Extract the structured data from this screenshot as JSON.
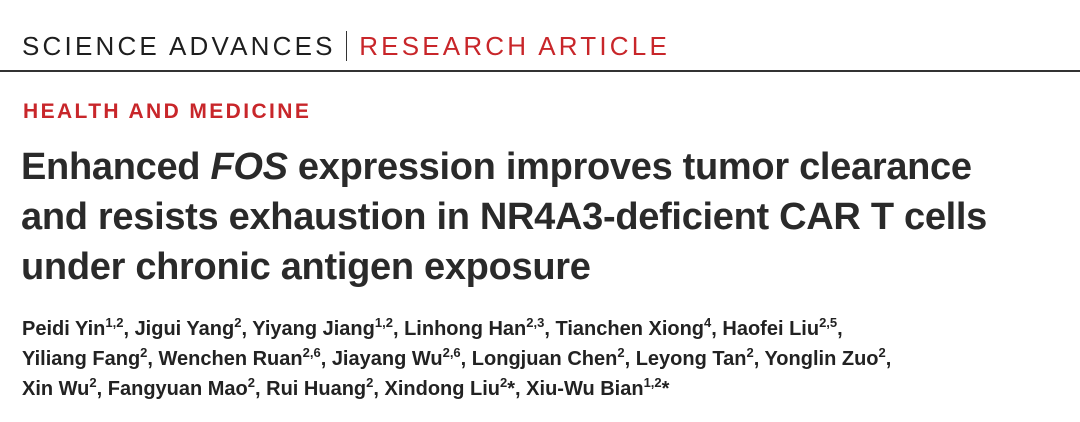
{
  "header": {
    "journal": "SCIENCE ADVANCES",
    "article_type": "RESEARCH ARTICLE"
  },
  "section": "HEALTH AND MEDICINE",
  "title": {
    "line1_a": "Enhanced ",
    "line1_italic": "FOS",
    "line1_b": " expression improves tumor clearance",
    "line2": "and resists exhaustion in NR4A3-deficient CAR T cells",
    "line3": "under chronic antigen exposure"
  },
  "authors": [
    [
      {
        "name": "Peidi Yin",
        "aff": "1,2",
        "sep": ", "
      },
      {
        "name": "Jigui Yang",
        "aff": "2",
        "sep": ", "
      },
      {
        "name": "Yiyang Jiang",
        "aff": "1,2",
        "sep": ", "
      },
      {
        "name": "Linhong Han",
        "aff": "2,3",
        "sep": ", "
      },
      {
        "name": "Tianchen Xiong",
        "aff": "4",
        "sep": ", "
      },
      {
        "name": "Haofei Liu",
        "aff": "2,5",
        "sep": ","
      }
    ],
    [
      {
        "name": "Yiliang Fang",
        "aff": "2",
        "sep": ", "
      },
      {
        "name": "Wenchen Ruan",
        "aff": "2,6",
        "sep": ", "
      },
      {
        "name": "Jiayang Wu",
        "aff": "2,6",
        "sep": ", "
      },
      {
        "name": "Longjuan Chen",
        "aff": "2",
        "sep": ", "
      },
      {
        "name": "Leyong Tan",
        "aff": "2",
        "sep": ", "
      },
      {
        "name": "Yonglin Zuo",
        "aff": "2",
        "sep": ","
      }
    ],
    [
      {
        "name": "Xin Wu",
        "aff": "2",
        "sep": ", "
      },
      {
        "name": "Fangyuan Mao",
        "aff": "2",
        "sep": ", "
      },
      {
        "name": "Rui Huang",
        "aff": "2",
        "sep": ", "
      },
      {
        "name": "Xindong Liu",
        "aff": "2",
        "sep": "*, "
      },
      {
        "name": "Xiu-Wu Bian",
        "aff": "1,2",
        "sep": "*"
      }
    ]
  ]
}
